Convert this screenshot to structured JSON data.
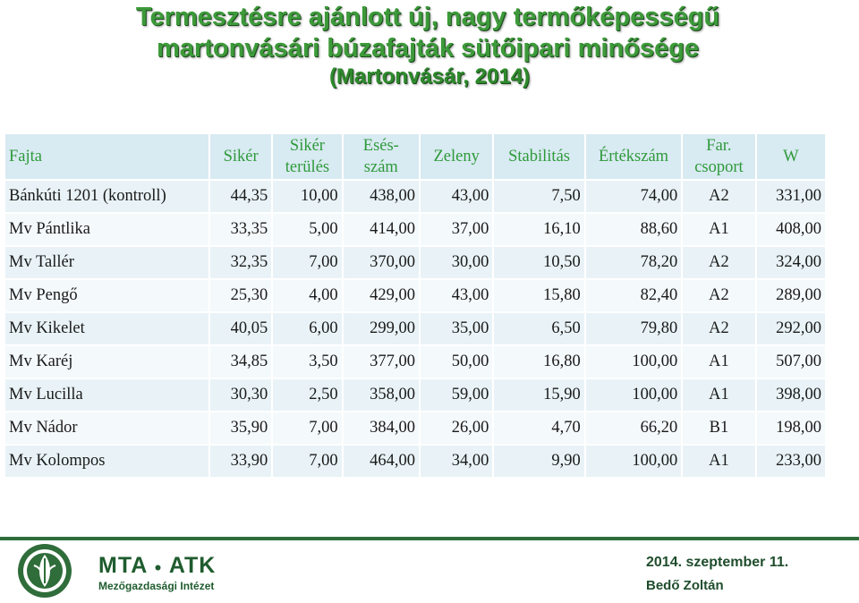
{
  "title": {
    "line1": "Termesztésre ajánlott új, nagy termőképességű",
    "line2": "martonvásári búzafajták sütőipari minősége",
    "line3": "(Martonvásár, 2014)"
  },
  "table": {
    "headers": [
      "Fajta",
      "Sikér",
      "Sikér terülés",
      "Esés-szám",
      "Zeleny",
      "Stabilitás",
      "Értékszám",
      "Far. csoport",
      "W"
    ],
    "header_lines": [
      [
        "Fajta"
      ],
      [
        "Sikér"
      ],
      [
        "Sikér",
        "terülés"
      ],
      [
        "Esés-",
        "szám"
      ],
      [
        "Zeleny"
      ],
      [
        "Stabilitás"
      ],
      [
        "Értékszám"
      ],
      [
        "Far.",
        "csoport"
      ],
      [
        "W"
      ]
    ],
    "rows": [
      [
        "Bánkúti 1201 (kontroll)",
        "44,35",
        "10,00",
        "438,00",
        "43,00",
        "7,50",
        "74,00",
        "A2",
        "331,00"
      ],
      [
        "Mv Pántlika",
        "33,35",
        "5,00",
        "414,00",
        "37,00",
        "16,10",
        "88,60",
        "A1",
        "408,00"
      ],
      [
        "Mv Tallér",
        "32,35",
        "7,00",
        "370,00",
        "30,00",
        "10,50",
        "78,20",
        "A2",
        "324,00"
      ],
      [
        "Mv Pengő",
        "25,30",
        "4,00",
        "429,00",
        "43,00",
        "15,80",
        "82,40",
        "A2",
        "289,00"
      ],
      [
        "Mv Kikelet",
        "40,05",
        "6,00",
        "299,00",
        "35,00",
        "6,50",
        "79,80",
        "A2",
        "292,00"
      ],
      [
        "Mv Karéj",
        "34,85",
        "3,50",
        "377,00",
        "50,00",
        "16,80",
        "100,00",
        "A1",
        "507,00"
      ],
      [
        "Mv Lucilla",
        "30,30",
        "2,50",
        "358,00",
        "59,00",
        "15,90",
        "100,00",
        "A1",
        "398,00"
      ],
      [
        "Mv Nádor",
        "35,90",
        "7,00",
        "384,00",
        "26,00",
        "4,70",
        "66,20",
        "B1",
        "198,00"
      ],
      [
        "Mv Kolompos",
        "33,90",
        "7,00",
        "464,00",
        "34,00",
        "9,90",
        "100,00",
        "A1",
        "233,00"
      ]
    ]
  },
  "footer": {
    "org": "MTA ATK",
    "org_left": "MTA",
    "org_right": "ATK",
    "institute": "Mezőgazdasági Intézet",
    "date": "2014. szeptember 11.",
    "author": "Bedő Zoltán"
  },
  "colors": {
    "title_green": "#3d9a3a",
    "header_bg": "#d8eaf2",
    "header_text": "#2e9a3a",
    "row_bg_a": "#f4f9fb",
    "row_bg_b": "#e9f3f7",
    "brand_green": "#1f5c2e"
  },
  "icons": {
    "logo": "mta-atk-logo-icon"
  }
}
